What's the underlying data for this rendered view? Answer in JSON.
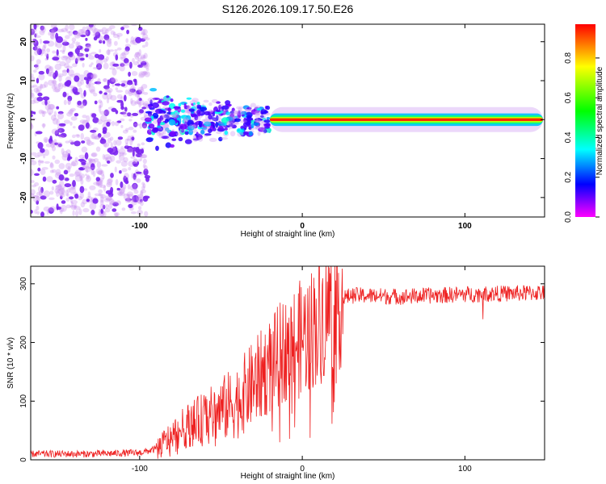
{
  "chart_data": [
    {
      "type": "heatmap",
      "title": "S126.2026.109.17.50.E26",
      "xlabel": "Height of straight line (km)",
      "ylabel": "Frequency (Hz)",
      "xlim": [
        -167,
        149
      ],
      "ylim": [
        -25,
        24.5
      ],
      "x_ticks": [
        -100,
        0,
        100
      ],
      "y_ticks": [
        20,
        10,
        0,
        -10,
        -20
      ],
      "colorbar": {
        "label": "Normalized spectral amplitude",
        "range": [
          0.0,
          0.97
        ],
        "ticks": [
          0.0,
          0.2,
          0.4,
          0.6,
          0.8
        ],
        "colors": [
          "#ff00ff",
          "#0000ff",
          "#00ffff",
          "#00ff00",
          "#ffff00",
          "#ff0000"
        ]
      },
      "regions": [
        {
          "name": "noise",
          "x_range": [
            -167,
            -95
          ],
          "freq_spread": 24.5,
          "amplitude": 0.15
        },
        {
          "name": "onset",
          "x_range": [
            -95,
            -20
          ],
          "freq_center": 0,
          "freq_spread": 8,
          "amplitude": 0.45
        },
        {
          "name": "signal-line",
          "x_range": [
            -20,
            149
          ],
          "freq_center": 0,
          "freq_width": 1.5,
          "amplitude": 0.95
        }
      ]
    },
    {
      "type": "line",
      "xlabel": "Height of straight line (km)",
      "ylabel": "SNR (10 * v/v)",
      "xlim": [
        -167,
        149
      ],
      "ylim": [
        0,
        330
      ],
      "x_ticks": [
        -100,
        0,
        100
      ],
      "y_ticks": [
        0,
        100,
        200,
        300
      ],
      "series": [
        {
          "name": "SNR",
          "color": "#ee2020",
          "x": [
            -167,
            -130,
            -100,
            -90,
            -80,
            -70,
            -60,
            -50,
            -40,
            -30,
            -20,
            -10,
            0,
            10,
            20,
            30,
            40,
            60,
            80,
            100,
            120,
            149
          ],
          "y": [
            10,
            10,
            12,
            18,
            40,
            60,
            70,
            85,
            100,
            130,
            160,
            190,
            210,
            235,
            270,
            280,
            280,
            278,
            280,
            282,
            283,
            285
          ]
        }
      ]
    }
  ]
}
